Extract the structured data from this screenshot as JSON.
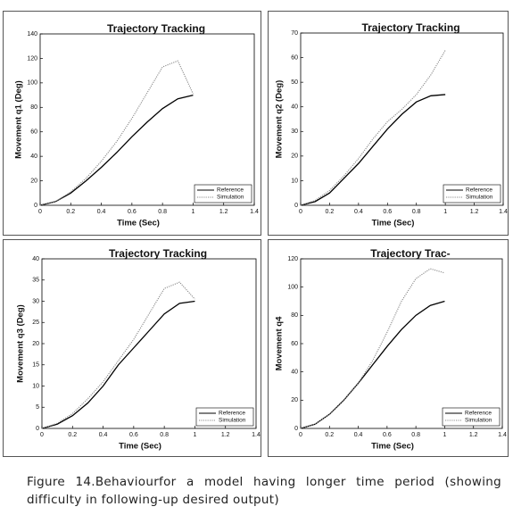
{
  "chart_data": [
    {
      "type": "line",
      "title": "Trajectory Tracking",
      "xlabel": "Time (Sec)",
      "ylabel": "Movement q1 (Deg)",
      "x": [
        0,
        0.1,
        0.2,
        0.3,
        0.4,
        0.5,
        0.6,
        0.7,
        0.8,
        0.9,
        1.0
      ],
      "xlim": [
        0,
        1.4
      ],
      "xticks": [
        0,
        0.2,
        0.4,
        0.6,
        0.8,
        1,
        1.2,
        1.4
      ],
      "ylim": [
        0,
        140
      ],
      "yticks": [
        0,
        20,
        40,
        60,
        80,
        100,
        120,
        140
      ],
      "legend": "lower right",
      "series": [
        {
          "name": "Reference",
          "color": "#000000",
          "linestyle": "solid",
          "values": [
            0,
            3,
            10,
            20,
            31,
            43,
            56,
            68,
            79,
            87,
            90
          ]
        },
        {
          "name": "Simulation",
          "color": "#8a8a8a",
          "linestyle": "dotted",
          "values": [
            0,
            3,
            11,
            22,
            36,
            52,
            71,
            92,
            113,
            118,
            91
          ]
        }
      ]
    },
    {
      "type": "line",
      "title": "Trajectory Tracking",
      "xlabel": "Time (Sec)",
      "ylabel": "Movement q2 (Deg)",
      "x": [
        0,
        0.1,
        0.2,
        0.3,
        0.4,
        0.5,
        0.6,
        0.7,
        0.8,
        0.9,
        1.0
      ],
      "xlim": [
        0,
        1.4
      ],
      "xticks": [
        0,
        0.2,
        0.4,
        0.6,
        0.8,
        1,
        1.2,
        1.4
      ],
      "ylim": [
        0,
        70
      ],
      "yticks": [
        0,
        10,
        20,
        30,
        40,
        50,
        60,
        70
      ],
      "legend": "lower right",
      "series": [
        {
          "name": "Reference",
          "color": "#000000",
          "linestyle": "solid",
          "values": [
            0,
            1.5,
            5,
            11,
            17,
            24,
            31,
            37,
            42,
            44.5,
            45
          ]
        },
        {
          "name": "Simulation",
          "color": "#8a8a8a",
          "linestyle": "dotted",
          "values": [
            0,
            2,
            6,
            12,
            19,
            27,
            34,
            39,
            45,
            53,
            63
          ]
        }
      ]
    },
    {
      "type": "line",
      "title": "Trajectory Tracking",
      "xlabel": "Time (Sec)",
      "ylabel": "Movement q3 (Deg)",
      "x": [
        0,
        0.1,
        0.2,
        0.3,
        0.4,
        0.5,
        0.6,
        0.7,
        0.8,
        0.9,
        1.0
      ],
      "xlim": [
        0,
        1.4
      ],
      "xticks": [
        0,
        0.2,
        0.4,
        0.6,
        0.8,
        1,
        1.2,
        1.4
      ],
      "ylim": [
        0,
        40
      ],
      "yticks": [
        0,
        5,
        10,
        15,
        20,
        25,
        30,
        35,
        40
      ],
      "legend": "lower right",
      "series": [
        {
          "name": "Reference",
          "color": "#000000",
          "linestyle": "solid",
          "values": [
            0,
            1,
            3,
            6,
            10,
            15,
            19,
            23,
            27,
            29.5,
            30
          ]
        },
        {
          "name": "Simulation",
          "color": "#8a8a8a",
          "linestyle": "dotted",
          "values": [
            0,
            1.2,
            3.5,
            7,
            11,
            16,
            21,
            27,
            33,
            34.5,
            30.5
          ]
        }
      ]
    },
    {
      "type": "line",
      "title": "Trajectory Trac-",
      "xlabel": "Time (Sec)",
      "ylabel": "Movement q4",
      "x": [
        0,
        0.1,
        0.2,
        0.3,
        0.4,
        0.5,
        0.6,
        0.7,
        0.8,
        0.9,
        1.0
      ],
      "xlim": [
        0,
        1.4
      ],
      "xticks": [
        0,
        0.2,
        0.4,
        0.6,
        0.8,
        1,
        1.2,
        1.4
      ],
      "ylim": [
        0,
        120
      ],
      "yticks": [
        0,
        20,
        40,
        60,
        80,
        100,
        120
      ],
      "legend": "lower right",
      "series": [
        {
          "name": "Reference",
          "color": "#000000",
          "linestyle": "solid",
          "values": [
            0,
            3,
            10,
            20,
            32,
            45,
            58,
            70,
            80,
            87,
            90
          ]
        },
        {
          "name": "Simulation",
          "color": "#8a8a8a",
          "linestyle": "dotted",
          "values": [
            0,
            3,
            10,
            20,
            32,
            48,
            68,
            90,
            106,
            113,
            110
          ]
        }
      ]
    }
  ],
  "caption": "Figure 14.Behaviourfor a model having longer time period (showing difficulty in following-up  desired output)"
}
